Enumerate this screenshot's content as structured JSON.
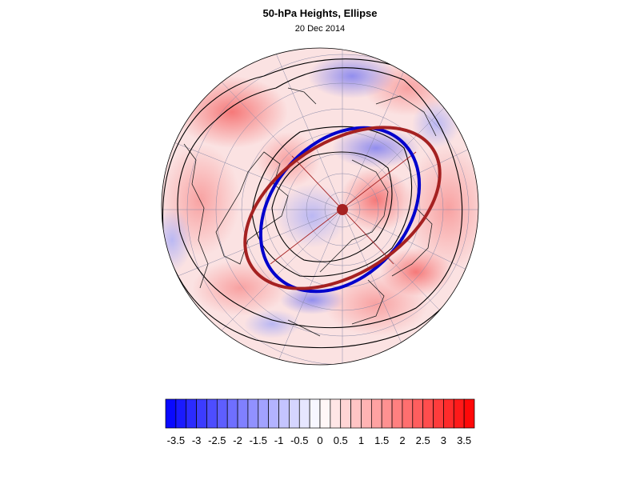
{
  "header": {
    "title": "50-hPa Heights, Ellipse",
    "date": "20 Dec 2014"
  },
  "colors": {
    "blue_ellipse": "#0000cc",
    "red_ellipse": "#a52121",
    "contour": "#000000",
    "colorbar_min": "#0000ff",
    "colorbar_mid": "#ffffff",
    "colorbar_max": "#ff0000"
  },
  "colorbar": {
    "min": -3.75,
    "max": 3.75,
    "step": 0.25,
    "tick_labels": [
      "-3.5",
      "-3",
      "-2.5",
      "-2",
      "-1.5",
      "-1",
      "-0.5",
      "0",
      "0.5",
      "1",
      "1.5",
      "2",
      "2.5",
      "3",
      "3.5"
    ],
    "tick_values": [
      -3.5,
      -3,
      -2.5,
      -2,
      -1.5,
      -1,
      -0.5,
      0,
      0.5,
      1,
      1.5,
      2,
      2.5,
      3,
      3.5
    ]
  },
  "map": {
    "projection": "polar stereographic, northern hemisphere",
    "features": [
      "standardized 50-hPa height anomaly shading",
      "geopotential height contours",
      "fitted vortex ellipse (blue)",
      "climatological ellipse (dark red)",
      "ellipse axes",
      "coastlines",
      "lat/lon grid"
    ]
  }
}
